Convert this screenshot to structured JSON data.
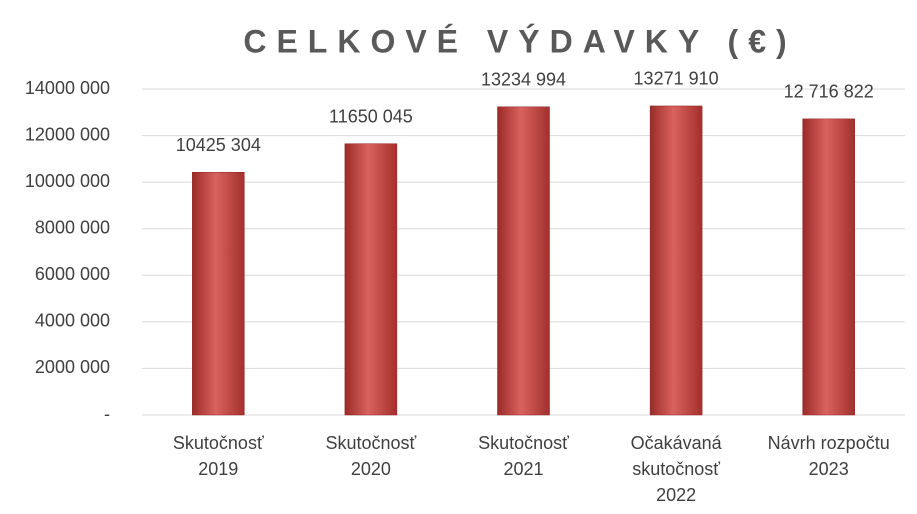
{
  "chart_data": {
    "type": "bar",
    "title": "CELKOVÉ VÝDAVKY (€)",
    "categories": [
      "Skutočnosť\n2019",
      "Skutočnosť\n2020",
      "Skutočnosť\n2021",
      "Očakávaná\nskutočnosť\n2022",
      "Návrh rozpočtu\n2023"
    ],
    "values": [
      10425304,
      11650045,
      13234994,
      13271910,
      12716822
    ],
    "value_labels": [
      "10425 304",
      "11650 045",
      "13234 994",
      "13271 910",
      "12 716 822"
    ],
    "color": "#c0504d",
    "ylim": [
      0,
      14000000
    ],
    "yticks": [
      {
        "value": 0,
        "label": "-"
      },
      {
        "value": 2000000,
        "label": "2000 000"
      },
      {
        "value": 4000000,
        "label": "4000 000"
      },
      {
        "value": 6000000,
        "label": "6000 000"
      },
      {
        "value": 8000000,
        "label": "8000 000"
      },
      {
        "value": 10000000,
        "label": "10000 000"
      },
      {
        "value": 12000000,
        "label": "12000 000"
      },
      {
        "value": 14000000,
        "label": "14000 000"
      }
    ],
    "grid": true
  }
}
